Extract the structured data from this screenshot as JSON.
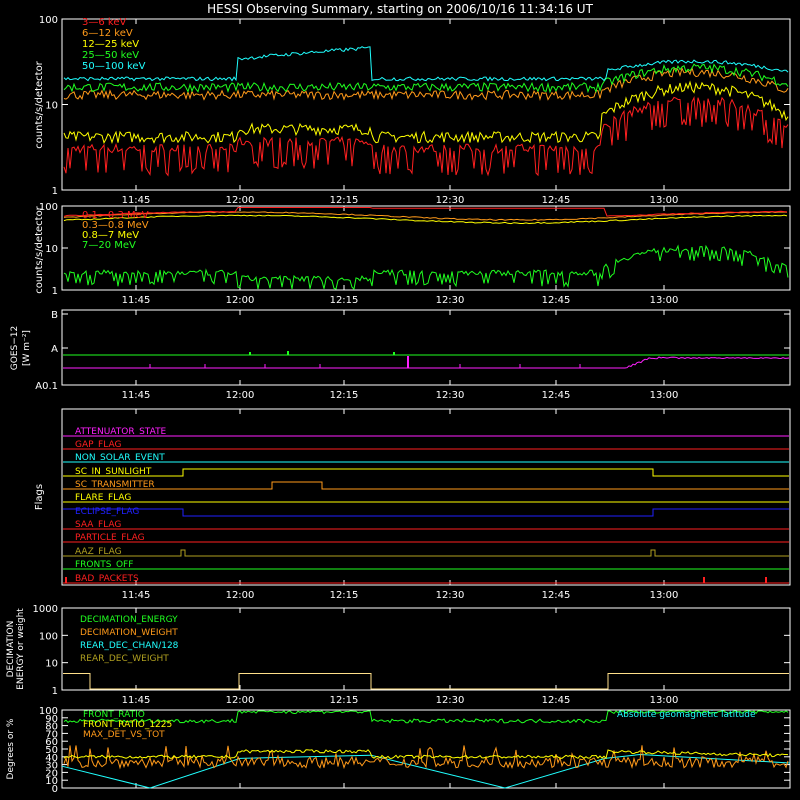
{
  "title": "HESSI Observing Summary, starting on 2006/10/16 11:34:16 UT",
  "time_ticks": [
    "11:45",
    "12:00",
    "12:15",
    "12:30",
    "12:45",
    "13:00"
  ],
  "colors": {
    "frame": "#ffffff",
    "red": "#ff2020",
    "orange": "#ff9a1a",
    "yellow": "#ffff00",
    "green": "#20ff20",
    "cyan": "#20ffff",
    "magenta": "#ff20ff",
    "blue": "#2020ff",
    "olive": "#b0a020",
    "pale": "#ffe08a"
  },
  "chart_data": [
    {
      "id": "panel1",
      "type": "line",
      "ylabel": "counts/s/detector",
      "yscale": "log",
      "ylim": [
        1,
        100
      ],
      "ytick_labels": [
        "1",
        "10",
        "100"
      ],
      "series": [
        {
          "name": "3—6 keV",
          "color": "red"
        },
        {
          "name": "6—12 keV",
          "color": "orange"
        },
        {
          "name": "12—25 keV",
          "color": "yellow"
        },
        {
          "name": "25—50 keV",
          "color": "green"
        },
        {
          "name": "50—100 keV",
          "color": "cyan"
        }
      ]
    },
    {
      "id": "panel2",
      "type": "line",
      "ylabel": "counts/s/detector",
      "yscale": "log",
      "ylim": [
        1,
        100
      ],
      "ytick_labels": [
        "1",
        "10",
        "100"
      ],
      "series": [
        {
          "name": "0.1—0.3 MeV",
          "color": "red"
        },
        {
          "name": "0.3—0.8 MeV",
          "color": "orange"
        },
        {
          "name": "0.8—7 MeV",
          "color": "yellow"
        },
        {
          "name": "7—20 MeV",
          "color": "green"
        }
      ]
    },
    {
      "id": "panel3",
      "type": "line",
      "ylabel": "GOES−12",
      "ylabel2": "[W m⁻²]",
      "ytick_labels": [
        "A0.1",
        "A",
        "B"
      ],
      "series": [
        {
          "name": "",
          "color": "green"
        },
        {
          "name": "",
          "color": "magenta"
        }
      ]
    },
    {
      "id": "panel4",
      "type": "line",
      "ylabel": "Flags",
      "flags": [
        {
          "name": "ATTENUATOR_STATE",
          "color": "magenta"
        },
        {
          "name": "GAP_FLAG",
          "color": "red"
        },
        {
          "name": "NON_SOLAR_EVENT",
          "color": "cyan"
        },
        {
          "name": "SC_IN_SUNLIGHT",
          "color": "yellow"
        },
        {
          "name": "SC_TRANSMITTER",
          "color": "orange"
        },
        {
          "name": "FLARE_FLAG",
          "color": "yellow"
        },
        {
          "name": "ECLIPSE_FLAG",
          "color": "blue"
        },
        {
          "name": "SAA_FLAG",
          "color": "red"
        },
        {
          "name": "PARTICLE_FLAG",
          "color": "red"
        },
        {
          "name": "AAZ_FLAG",
          "color": "olive"
        },
        {
          "name": "FRONTS_OFF",
          "color": "green"
        },
        {
          "name": "BAD_PACKETS",
          "color": "red"
        }
      ]
    },
    {
      "id": "panel5",
      "type": "line",
      "ylabel": "DECIMATION",
      "ylabel2": "ENERGY or weight",
      "yscale": "log",
      "ylim": [
        1,
        1000
      ],
      "ytick_labels": [
        "1",
        "10",
        "100",
        "1000"
      ],
      "series": [
        {
          "name": "DECIMATION_ENERGY",
          "color": "green"
        },
        {
          "name": "DECIMATION_WEIGHT",
          "color": "orange"
        },
        {
          "name": "REAR_DEC_CHAN/128",
          "color": "cyan"
        },
        {
          "name": "REAR_DEC_WEIGHT",
          "color": "olive"
        }
      ]
    },
    {
      "id": "panel6",
      "type": "line",
      "ylabel": "Degrees or %",
      "ylim": [
        0,
        100
      ],
      "ytick_labels": [
        "0",
        "10",
        "20",
        "30",
        "40",
        "50",
        "60",
        "70",
        "80",
        "90",
        "100"
      ],
      "series": [
        {
          "name": "FRONT_RATIO",
          "color": "green"
        },
        {
          "name": "FRONT_RATIO_1225",
          "color": "yellow"
        },
        {
          "name": "MAX_DET_VS_TOT",
          "color": "orange"
        },
        {
          "name": "Absolute geomagnetic latitude",
          "color": "cyan"
        }
      ]
    }
  ]
}
